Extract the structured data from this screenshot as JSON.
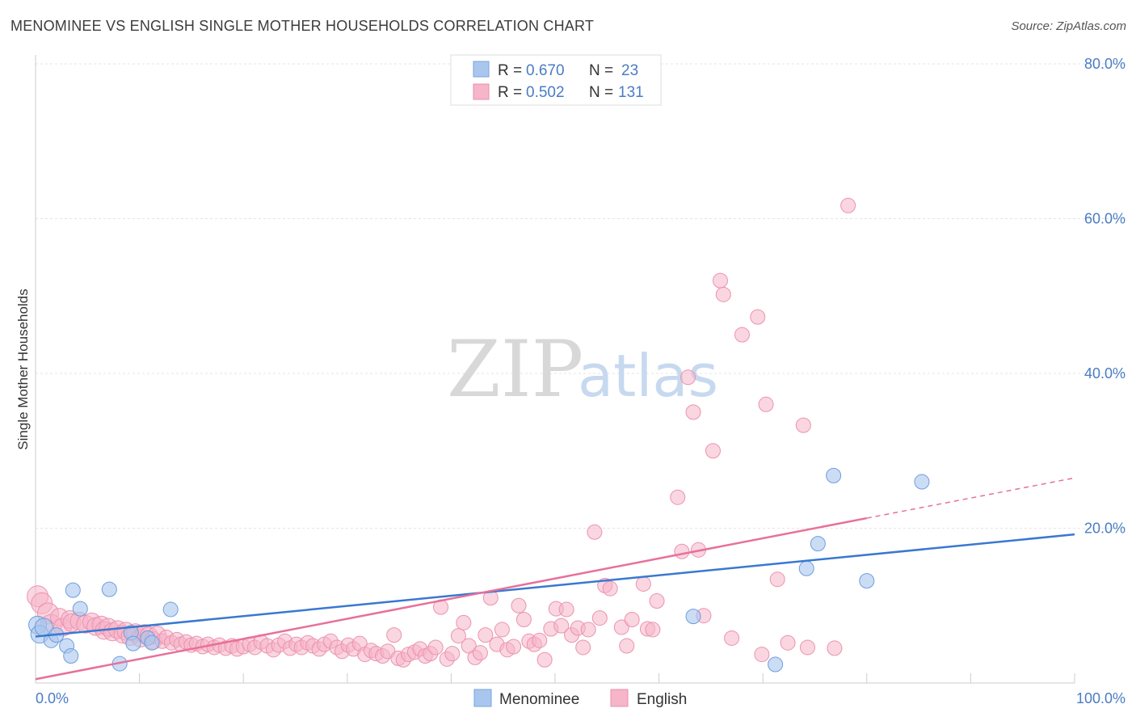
{
  "header": {
    "title": "MENOMINEE VS ENGLISH SINGLE MOTHER HOUSEHOLDS CORRELATION CHART",
    "source": "Source: ZipAtlas.com"
  },
  "watermark": {
    "zip": "ZIP",
    "atlas": "atlas"
  },
  "legend": {
    "rows": [
      {
        "r_label": "R =",
        "r_value": "0.670",
        "n_label": "N =",
        "n_value": "23",
        "color": "#a9c6ef"
      },
      {
        "r_label": "R =",
        "r_value": "0.502",
        "n_label": "N =",
        "n_value": "131",
        "color": "#f6b5c8"
      }
    ]
  },
  "bottom_legend": {
    "items": [
      "Menominee",
      "English"
    ]
  },
  "chart_data": {
    "type": "scatter",
    "title": "MENOMINEE VS ENGLISH SINGLE MOTHER HOUSEHOLDS CORRELATION CHART",
    "xlabel": "",
    "ylabel": "Single Mother Households",
    "xlim": [
      0,
      100
    ],
    "ylim": [
      0,
      80
    ],
    "x_ticks": [
      "0.0%",
      "100.0%"
    ],
    "y_ticks": [
      "20.0%",
      "40.0%",
      "60.0%",
      "80.0%"
    ],
    "y_tick_values": [
      20,
      40,
      60,
      80
    ],
    "grid": true,
    "legend_position": "top-center",
    "colors": {
      "menominee": "#3a78d0",
      "english": "#e8709a",
      "menominee_fill": "#a9c6ef",
      "english_fill": "#f6b5c8"
    },
    "series": [
      {
        "name": "Menominee",
        "points": [
          [
            0.2,
            7.5
          ],
          [
            0.4,
            6.3
          ],
          [
            0.8,
            7.2
          ],
          [
            1.5,
            5.5
          ],
          [
            2.0,
            6.2
          ],
          [
            3.0,
            4.8
          ],
          [
            3.4,
            3.5
          ],
          [
            3.6,
            12.0
          ],
          [
            4.3,
            9.6
          ],
          [
            7.1,
            12.1
          ],
          [
            8.1,
            2.5
          ],
          [
            9.2,
            6.5
          ],
          [
            9.4,
            5.1
          ],
          [
            10.8,
            5.8
          ],
          [
            11.2,
            5.2
          ],
          [
            13.0,
            9.5
          ],
          [
            63.3,
            8.6
          ],
          [
            71.2,
            2.4
          ],
          [
            74.2,
            14.8
          ],
          [
            75.3,
            18.0
          ],
          [
            76.8,
            26.8
          ],
          [
            80.0,
            13.2
          ],
          [
            85.3,
            26.0
          ]
        ],
        "trend": {
          "x0": 0,
          "y0": 6.0,
          "x1": 100,
          "y1": 19.2,
          "dashed_from": null
        }
      },
      {
        "name": "English",
        "points": [
          [
            0.2,
            11.2
          ],
          [
            0.6,
            10.3
          ],
          [
            1.2,
            9.0
          ],
          [
            1.5,
            7.5
          ],
          [
            2.3,
            8.5
          ],
          [
            2.6,
            7.2
          ],
          [
            3.3,
            8.2
          ],
          [
            3.5,
            7.8
          ],
          [
            4.2,
            8.0
          ],
          [
            4.8,
            7.6
          ],
          [
            5.4,
            7.9
          ],
          [
            5.8,
            7.3
          ],
          [
            6.3,
            7.5
          ],
          [
            6.6,
            6.8
          ],
          [
            7.0,
            7.2
          ],
          [
            7.4,
            6.6
          ],
          [
            7.9,
            6.9
          ],
          [
            8.4,
            6.3
          ],
          [
            8.7,
            6.7
          ],
          [
            9.1,
            6.0
          ],
          [
            9.6,
            6.5
          ],
          [
            10.1,
            5.8
          ],
          [
            10.5,
            6.4
          ],
          [
            10.9,
            6.1
          ],
          [
            11.3,
            5.5
          ],
          [
            11.7,
            6.2
          ],
          [
            12.2,
            5.4
          ],
          [
            12.6,
            5.9
          ],
          [
            13.1,
            5.2
          ],
          [
            13.6,
            5.6
          ],
          [
            14.0,
            5.0
          ],
          [
            14.5,
            5.3
          ],
          [
            15.0,
            4.9
          ],
          [
            15.5,
            5.1
          ],
          [
            16.1,
            4.7
          ],
          [
            16.6,
            5.0
          ],
          [
            17.2,
            4.6
          ],
          [
            17.7,
            4.9
          ],
          [
            18.3,
            4.5
          ],
          [
            18.9,
            4.8
          ],
          [
            19.4,
            4.4
          ],
          [
            20.0,
            4.7
          ],
          [
            20.6,
            5.0
          ],
          [
            21.1,
            4.6
          ],
          [
            21.7,
            5.3
          ],
          [
            22.3,
            4.8
          ],
          [
            22.9,
            4.3
          ],
          [
            23.4,
            4.9
          ],
          [
            24.0,
            5.4
          ],
          [
            24.5,
            4.5
          ],
          [
            25.1,
            5.0
          ],
          [
            25.6,
            4.6
          ],
          [
            26.2,
            5.2
          ],
          [
            26.7,
            4.8
          ],
          [
            27.3,
            4.4
          ],
          [
            27.8,
            5.0
          ],
          [
            28.4,
            5.4
          ],
          [
            29.0,
            4.6
          ],
          [
            29.5,
            4.1
          ],
          [
            30.1,
            4.9
          ],
          [
            30.6,
            4.4
          ],
          [
            31.2,
            5.1
          ],
          [
            31.7,
            3.7
          ],
          [
            32.3,
            4.2
          ],
          [
            32.8,
            3.8
          ],
          [
            33.4,
            3.5
          ],
          [
            33.9,
            4.1
          ],
          [
            34.5,
            6.2
          ],
          [
            34.9,
            3.2
          ],
          [
            35.4,
            3.0
          ],
          [
            35.9,
            3.7
          ],
          [
            36.5,
            4.0
          ],
          [
            37.0,
            4.4
          ],
          [
            37.5,
            3.5
          ],
          [
            38.0,
            3.8
          ],
          [
            38.5,
            4.6
          ],
          [
            39.0,
            9.8
          ],
          [
            39.6,
            3.1
          ],
          [
            40.1,
            3.8
          ],
          [
            40.7,
            6.1
          ],
          [
            41.2,
            7.8
          ],
          [
            41.7,
            4.8
          ],
          [
            42.3,
            3.3
          ],
          [
            42.8,
            3.9
          ],
          [
            43.3,
            6.2
          ],
          [
            43.8,
            11.0
          ],
          [
            44.4,
            5.0
          ],
          [
            44.9,
            6.9
          ],
          [
            45.4,
            4.3
          ],
          [
            46.0,
            4.7
          ],
          [
            46.5,
            10.0
          ],
          [
            47.0,
            8.2
          ],
          [
            47.5,
            5.4
          ],
          [
            48.0,
            5.0
          ],
          [
            48.5,
            5.5
          ],
          [
            49.0,
            3.0
          ],
          [
            49.6,
            7.0
          ],
          [
            50.1,
            9.6
          ],
          [
            50.6,
            7.4
          ],
          [
            51.1,
            9.5
          ],
          [
            51.6,
            6.2
          ],
          [
            52.2,
            7.1
          ],
          [
            52.7,
            4.6
          ],
          [
            53.2,
            6.9
          ],
          [
            53.8,
            19.5
          ],
          [
            54.3,
            8.4
          ],
          [
            54.8,
            12.6
          ],
          [
            55.3,
            12.2
          ],
          [
            56.4,
            7.2
          ],
          [
            56.9,
            4.8
          ],
          [
            57.4,
            8.2
          ],
          [
            58.5,
            12.8
          ],
          [
            58.9,
            7.0
          ],
          [
            59.4,
            6.9
          ],
          [
            59.8,
            10.6
          ],
          [
            61.8,
            24.0
          ],
          [
            62.2,
            17.0
          ],
          [
            62.8,
            39.5
          ],
          [
            63.3,
            35.0
          ],
          [
            63.8,
            17.2
          ],
          [
            64.3,
            8.7
          ],
          [
            65.2,
            30.0
          ],
          [
            65.9,
            52.0
          ],
          [
            66.2,
            50.2
          ],
          [
            67.0,
            5.8
          ],
          [
            68.0,
            45.0
          ],
          [
            69.5,
            47.3
          ],
          [
            69.9,
            3.7
          ],
          [
            70.3,
            36.0
          ],
          [
            71.4,
            13.4
          ],
          [
            72.4,
            5.2
          ],
          [
            73.9,
            33.3
          ],
          [
            74.3,
            4.6
          ],
          [
            78.2,
            61.7
          ],
          [
            76.9,
            4.5
          ]
        ],
        "trend": {
          "x0": 0,
          "y0": 0.5,
          "x1": 80,
          "y1": 21.3,
          "dashed_to_x": 100,
          "dashed_to_y": 26.5
        }
      }
    ]
  }
}
